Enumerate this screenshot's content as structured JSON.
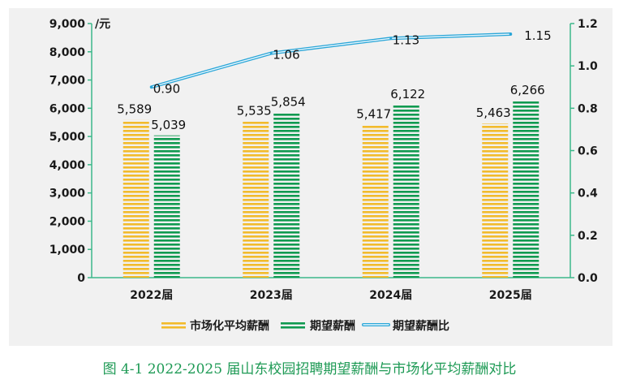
{
  "chart_data": {
    "type": "bar",
    "categories": [
      "2022届",
      "2023届",
      "2024届",
      "2025届"
    ],
    "series": [
      {
        "name": "市场化平均薪酬",
        "type": "bar",
        "axis": "left",
        "values": [
          5589,
          5535,
          5417,
          5463
        ],
        "labels": [
          "5,589",
          "5,535",
          "5,417",
          "5,463"
        ],
        "color": "#f2bb2c"
      },
      {
        "name": "期望薪酬",
        "type": "bar",
        "axis": "left",
        "values": [
          5039,
          5854,
          6122,
          6266
        ],
        "labels": [
          "5,039",
          "5,854",
          "6,122",
          "6,266"
        ],
        "color": "#0f9a50"
      },
      {
        "name": "期望薪酬比",
        "type": "line",
        "axis": "right",
        "values": [
          0.9,
          1.06,
          1.13,
          1.15
        ],
        "labels": [
          "0.90",
          "1.06",
          "1.13",
          "1.15"
        ],
        "color": "#2aa6d8"
      }
    ],
    "y_left": {
      "unit": "/元",
      "ylim": [
        0,
        9000
      ],
      "ticks": [
        "0",
        "1,000",
        "2,000",
        "3,000",
        "4,000",
        "5,000",
        "6,000",
        "7,000",
        "8,000",
        "9,000"
      ]
    },
    "y_right": {
      "ylim": [
        0,
        1.2
      ],
      "ticks": [
        "0.0",
        "0.2",
        "0.4",
        "0.6",
        "0.8",
        "1.0",
        "1.2"
      ]
    },
    "axis_color": "#3cb88a",
    "grid": false,
    "legend_position": "bottom",
    "title": "图 4-1 2022-2025 届山东校园招聘期望薪酬与市场化平均薪酬对比"
  }
}
